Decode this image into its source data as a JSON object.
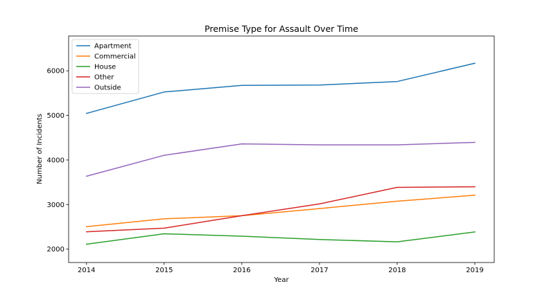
{
  "chart_data": {
    "type": "line",
    "title": "Premise Type for Assault Over Time",
    "xlabel": "Year",
    "ylabel": "Number of Incidents",
    "x": [
      2014,
      2015,
      2016,
      2017,
      2018,
      2019
    ],
    "xlim": [
      2013.77,
      2019.25
    ],
    "ylim": [
      1700,
      6780
    ],
    "yticks": [
      2000,
      3000,
      4000,
      5000,
      6000
    ],
    "grid": false,
    "legend_position": "top-left",
    "series": [
      {
        "name": "Apartment",
        "color": "#1f77b4",
        "values": [
          5045,
          5525,
          5672,
          5680,
          5760,
          6170
        ]
      },
      {
        "name": "Commercial",
        "color": "#ff7f0e",
        "values": [
          2505,
          2680,
          2750,
          2910,
          3075,
          3210
        ]
      },
      {
        "name": "House",
        "color": "#2ca02c",
        "values": [
          2110,
          2345,
          2290,
          2215,
          2165,
          2385
        ]
      },
      {
        "name": "Other",
        "color": "#d62728",
        "values": [
          2390,
          2470,
          2750,
          3015,
          3385,
          3400
        ]
      },
      {
        "name": "Outside",
        "color": "#9467bd",
        "values": [
          3635,
          4105,
          4360,
          4340,
          4340,
          4395
        ]
      }
    ]
  }
}
